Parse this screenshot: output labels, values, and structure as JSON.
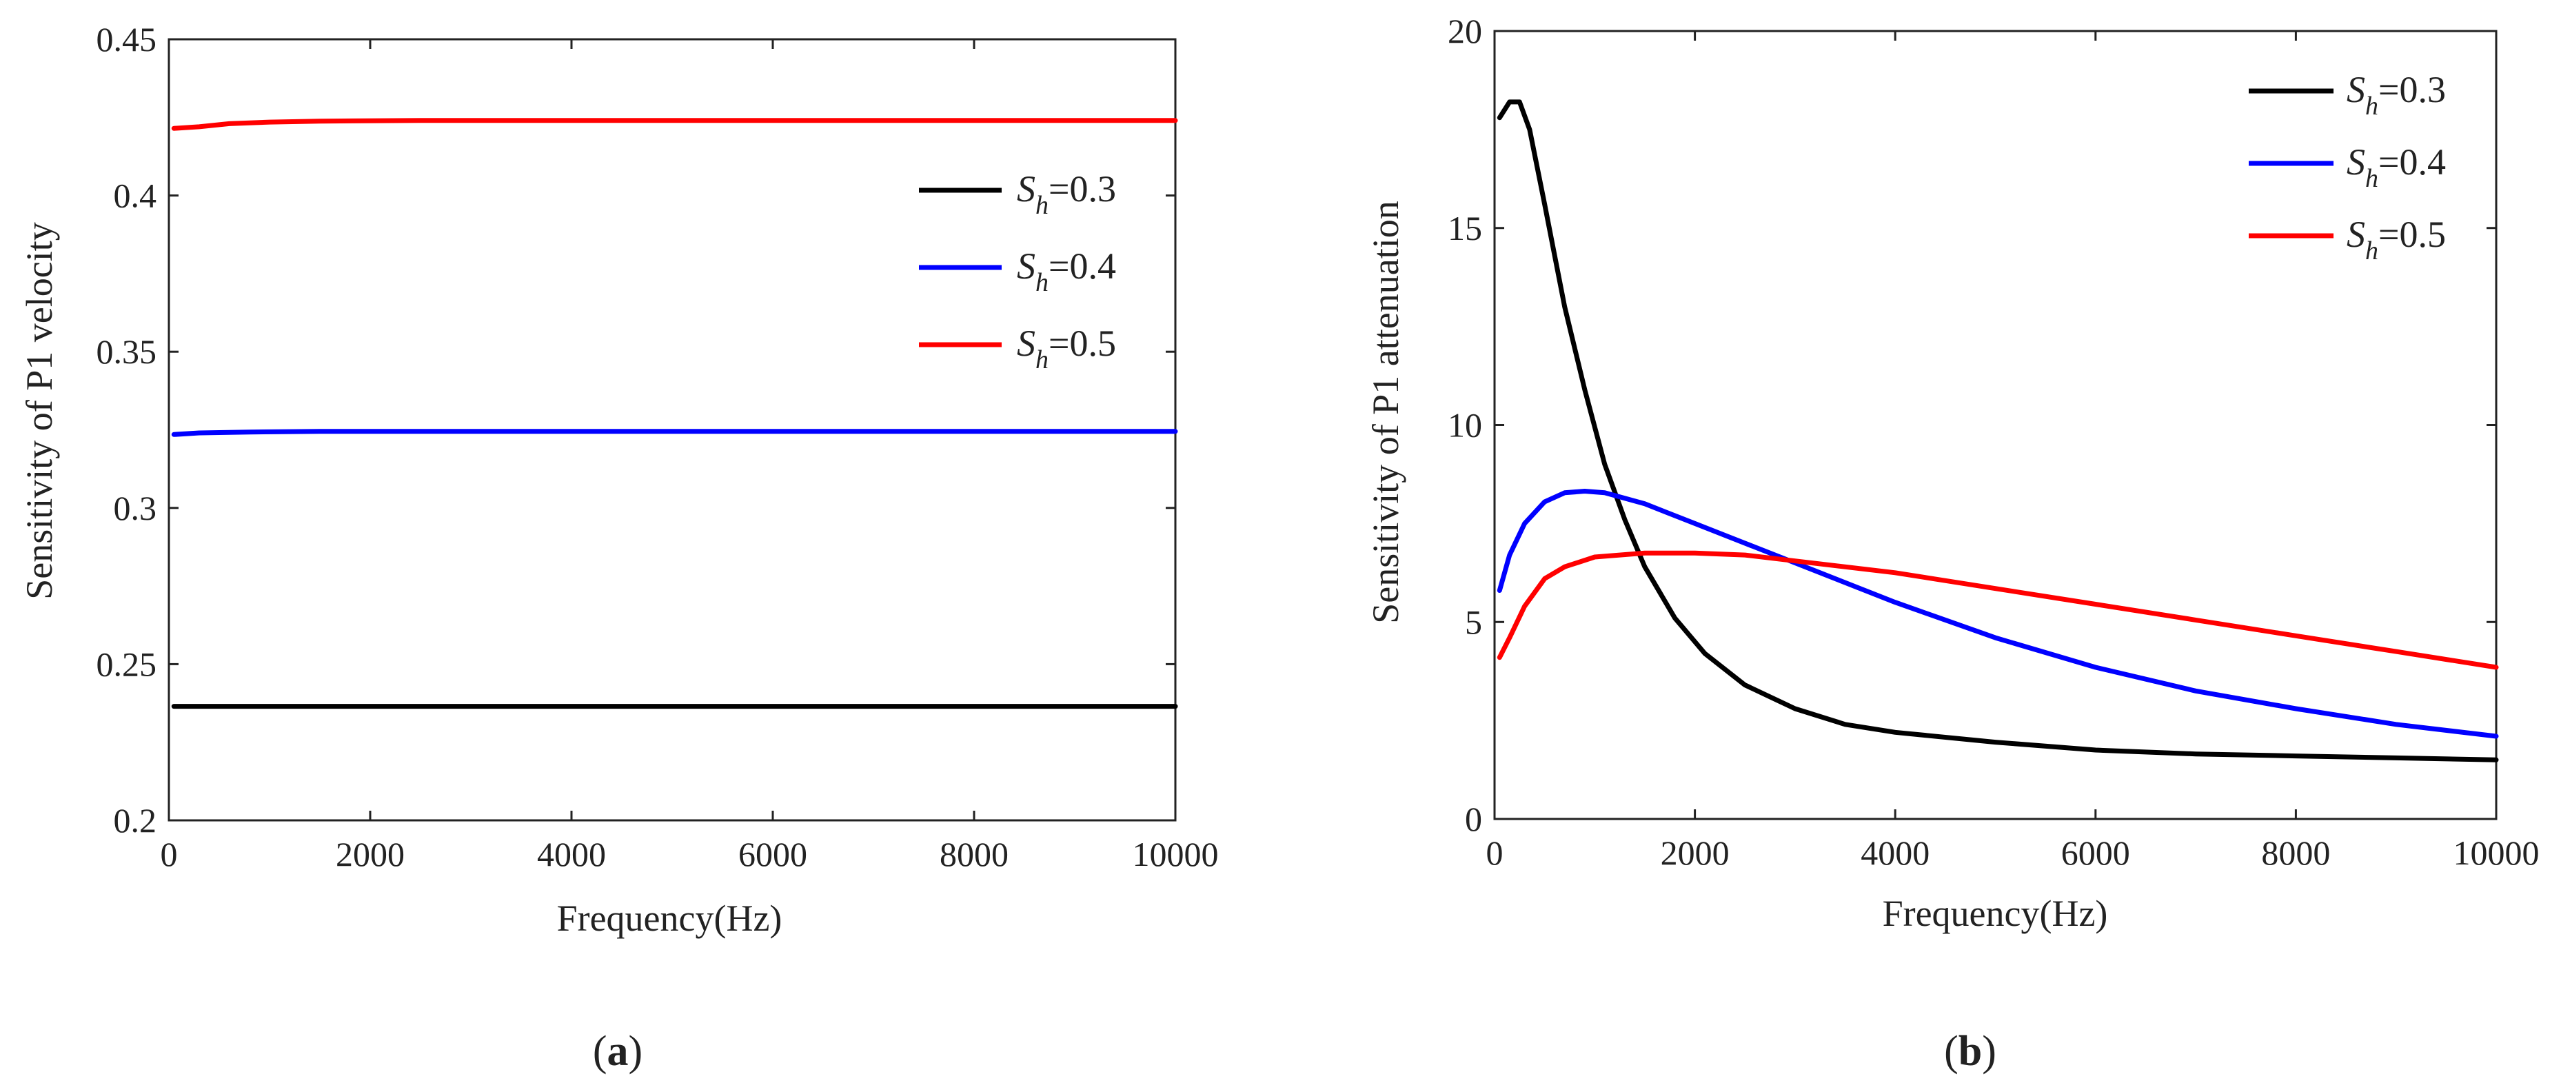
{
  "chart_data": [
    {
      "id": "a",
      "type": "line",
      "caption_letter": "a",
      "xlabel": "Frequency(Hz)",
      "ylabel": "Sensitivity of  P1 velocity",
      "xlim": [
        0,
        10000
      ],
      "ylim": [
        0.2,
        0.45
      ],
      "xticks": [
        0,
        2000,
        4000,
        6000,
        8000,
        10000
      ],
      "xtick_labels": [
        "0",
        "2000",
        "4000",
        "6000",
        "8000",
        "10000"
      ],
      "yticks": [
        0.2,
        0.25,
        0.3,
        0.35,
        0.4,
        0.45
      ],
      "ytick_labels": [
        "0.2",
        "0.25",
        "0.3",
        "0.35",
        "0.4",
        "0.45"
      ],
      "legend_position": "right, upper-middle",
      "series": [
        {
          "name": "Sh=0.3",
          "label_main": "S",
          "label_sub": "h",
          "label_value": "=0.3",
          "color": "#000000",
          "x": [
            50,
            300,
            800,
            1500,
            3000,
            5000,
            7000,
            10000
          ],
          "y": [
            0.2365,
            0.2365,
            0.2365,
            0.2365,
            0.2365,
            0.2365,
            0.2365,
            0.2365
          ]
        },
        {
          "name": "Sh=0.4",
          "label_main": "S",
          "label_sub": "h",
          "label_value": "=0.4",
          "color": "#0000ff",
          "x": [
            50,
            300,
            800,
            1500,
            3000,
            5000,
            7000,
            10000
          ],
          "y": [
            0.3235,
            0.324,
            0.3243,
            0.3245,
            0.3245,
            0.3245,
            0.3245,
            0.3245
          ]
        },
        {
          "name": "Sh=0.5",
          "label_main": "S",
          "label_sub": "h",
          "label_value": "=0.5",
          "color": "#ff0000",
          "x": [
            50,
            300,
            600,
            1000,
            1500,
            2500,
            4000,
            6000,
            8000,
            10000
          ],
          "y": [
            0.4215,
            0.422,
            0.423,
            0.4235,
            0.4238,
            0.424,
            0.424,
            0.424,
            0.424,
            0.424
          ]
        }
      ]
    },
    {
      "id": "b",
      "type": "line",
      "caption_letter": "b",
      "xlabel": "Frequency(Hz)",
      "ylabel": "Sensitivity of  P1 attenuation",
      "xlim": [
        0,
        10000
      ],
      "ylim": [
        0,
        20
      ],
      "xticks": [
        0,
        2000,
        4000,
        6000,
        8000,
        10000
      ],
      "xtick_labels": [
        "0",
        "2000",
        "4000",
        "6000",
        "8000",
        "10000"
      ],
      "yticks": [
        0,
        5,
        10,
        15,
        20
      ],
      "ytick_labels": [
        "0",
        "5",
        "10",
        "15",
        "20"
      ],
      "legend_position": "top-right",
      "series": [
        {
          "name": "Sh=0.3",
          "label_main": "S",
          "label_sub": "h",
          "label_value": "=0.3",
          "color": "#000000",
          "x": [
            50,
            150,
            250,
            350,
            500,
            700,
            900,
            1100,
            1300,
            1500,
            1800,
            2100,
            2500,
            3000,
            3500,
            4000,
            5000,
            6000,
            7000,
            8000,
            9000,
            10000
          ],
          "y": [
            17.8,
            18.2,
            18.2,
            17.5,
            15.6,
            13.0,
            10.9,
            9.0,
            7.6,
            6.4,
            5.1,
            4.2,
            3.4,
            2.8,
            2.4,
            2.2,
            1.95,
            1.75,
            1.65,
            1.6,
            1.55,
            1.5
          ]
        },
        {
          "name": "Sh=0.4",
          "label_main": "S",
          "label_sub": "h",
          "label_value": "=0.4",
          "color": "#0000ff",
          "x": [
            50,
            150,
            300,
            500,
            700,
            900,
            1100,
            1500,
            2000,
            2500,
            3000,
            4000,
            5000,
            6000,
            7000,
            8000,
            9000,
            10000
          ],
          "y": [
            5.8,
            6.7,
            7.5,
            8.05,
            8.28,
            8.32,
            8.28,
            8.0,
            7.5,
            7.0,
            6.5,
            5.5,
            4.6,
            3.85,
            3.25,
            2.8,
            2.4,
            2.1
          ]
        },
        {
          "name": "Sh=0.5",
          "label_main": "S",
          "label_sub": "h",
          "label_value": "=0.5",
          "color": "#ff0000",
          "x": [
            50,
            150,
            300,
            500,
            700,
            1000,
            1500,
            2000,
            2500,
            3000,
            4000,
            5000,
            6000,
            7000,
            8000,
            9000,
            10000
          ],
          "y": [
            4.1,
            4.6,
            5.4,
            6.1,
            6.4,
            6.65,
            6.75,
            6.75,
            6.7,
            6.55,
            6.25,
            5.85,
            5.45,
            5.05,
            4.65,
            4.25,
            3.85
          ]
        }
      ]
    }
  ],
  "captions": {
    "a": {
      "open": "(",
      "letter": "a",
      "close": ")"
    },
    "b": {
      "open": "(",
      "letter": "b",
      "close": ")"
    }
  }
}
